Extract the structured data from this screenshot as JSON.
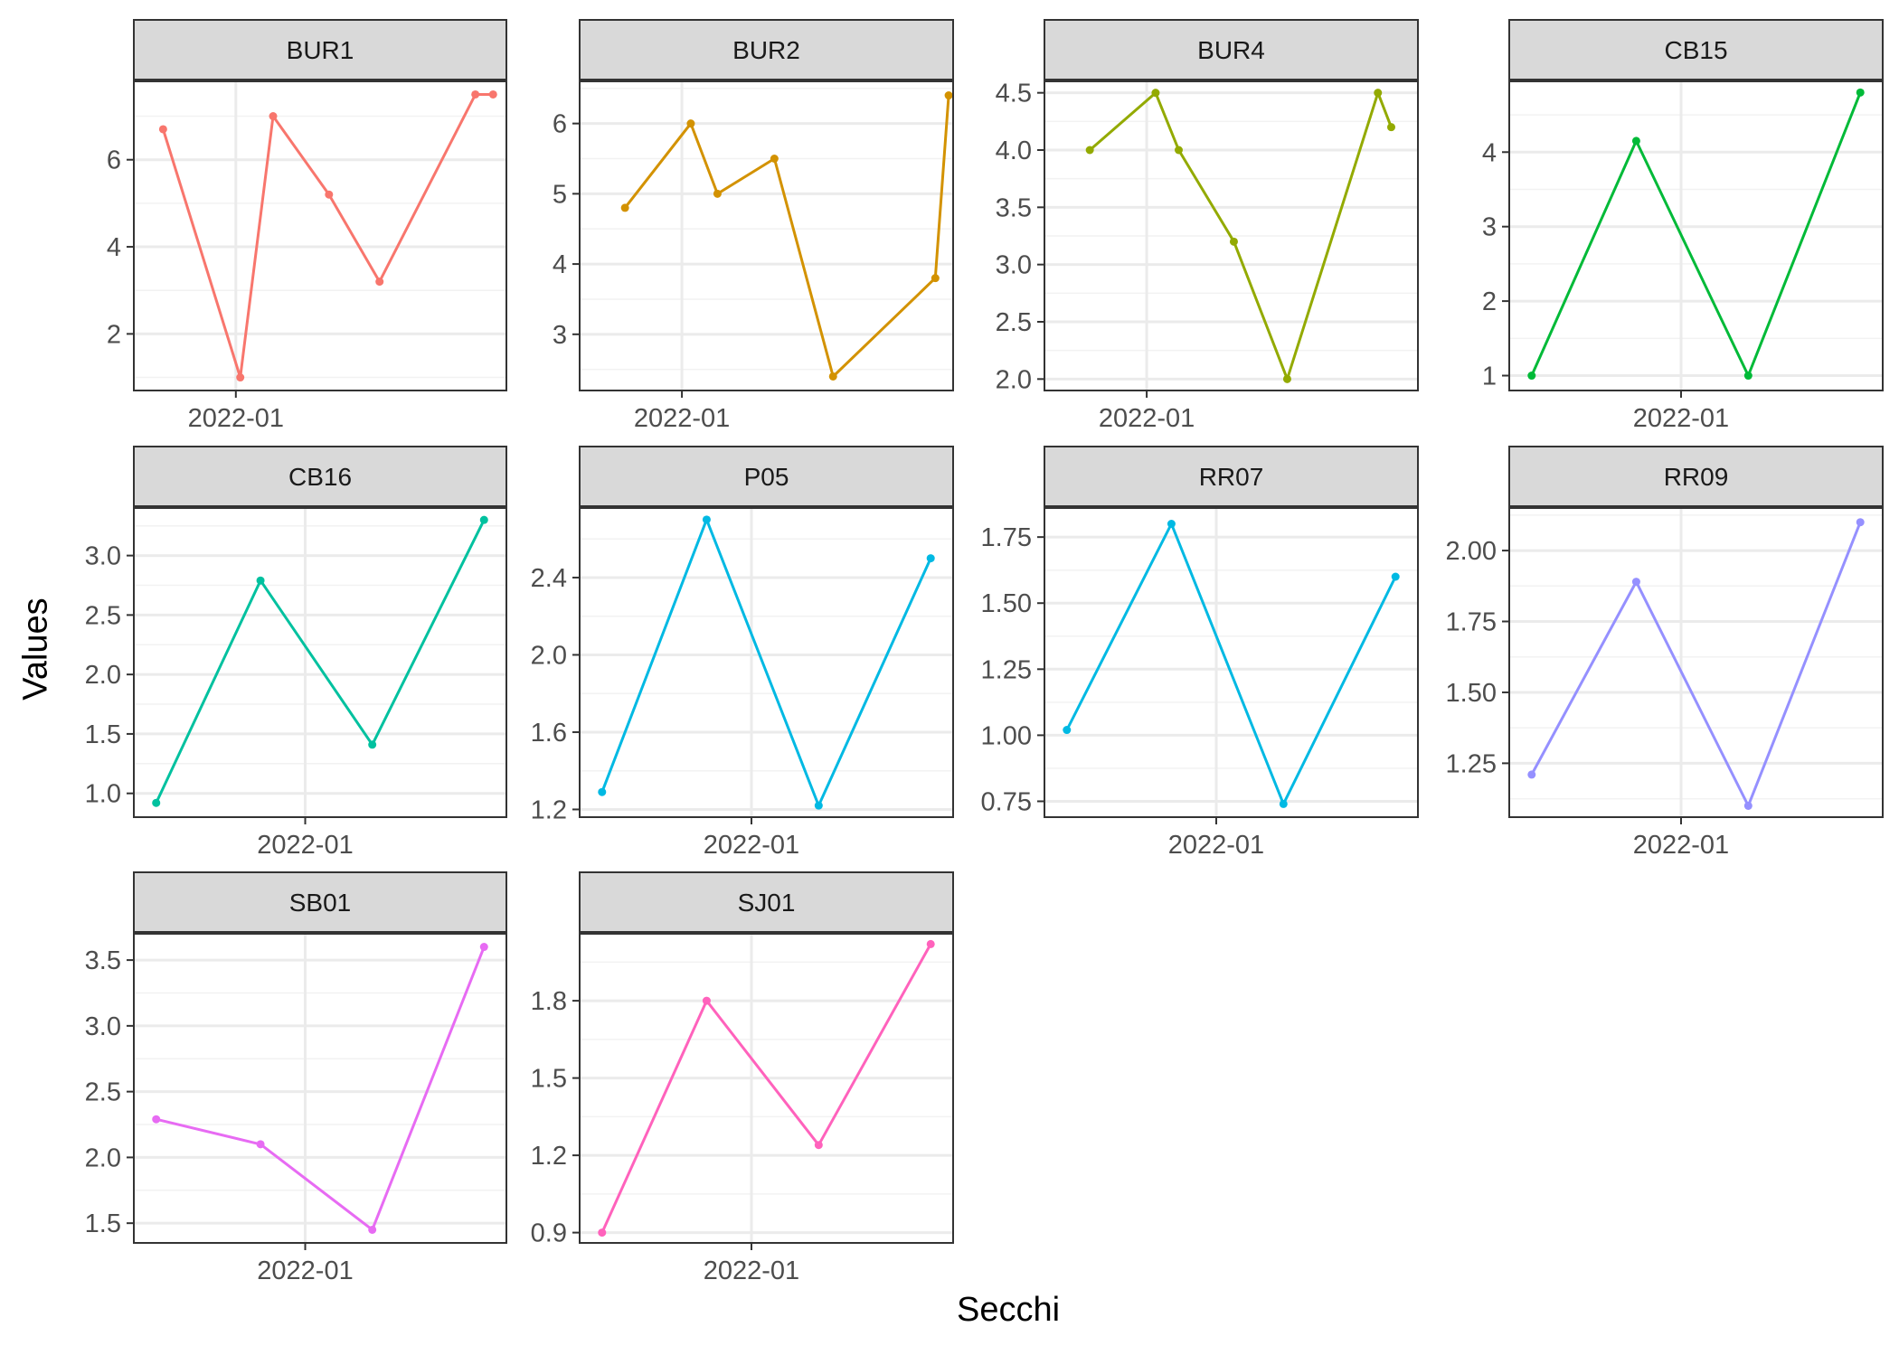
{
  "chart_data": {
    "type": "line",
    "xlabel": "Secchi",
    "ylabel": "Values",
    "x_tick_label": "2022-01",
    "grid": true,
    "legend": "none",
    "panels": [
      {
        "name": "BUR1",
        "color": "#F8766D",
        "ylim": [
          0.7,
          7.8
        ],
        "yticks": [
          "2",
          "4",
          "6"
        ],
        "x": [
          -0.82,
          0.05,
          0.42,
          1.05,
          1.62,
          2.7,
          2.9
        ],
        "values": [
          6.7,
          1.0,
          7.0,
          5.2,
          3.2,
          7.5,
          7.5
        ]
      },
      {
        "name": "BUR2",
        "color": "#D39200",
        "ylim": [
          2.2,
          6.6
        ],
        "yticks": [
          "3",
          "4",
          "5",
          "6"
        ],
        "x": [
          -0.64,
          0.1,
          0.4,
          1.04,
          1.7,
          2.85,
          3.0
        ],
        "values": [
          4.8,
          6.0,
          5.0,
          5.5,
          2.4,
          3.8,
          6.4
        ]
      },
      {
        "name": "BUR4",
        "color": "#93AA00",
        "ylim": [
          1.9,
          4.6
        ],
        "yticks": [
          "2.0",
          "2.5",
          "3.0",
          "3.5",
          "4.0",
          "4.5"
        ],
        "x": [
          -0.64,
          0.1,
          0.36,
          0.98,
          1.58,
          2.6,
          2.75
        ],
        "values": [
          4.0,
          4.5,
          4.0,
          3.2,
          2.0,
          4.5,
          4.2
        ]
      },
      {
        "name": "CB15",
        "color": "#00BA38",
        "ylim": [
          0.8,
          4.95
        ],
        "yticks": [
          "1",
          "2",
          "3",
          "4"
        ],
        "x": [
          -1.0,
          -0.3,
          0.45,
          1.2
        ],
        "values": [
          1.0,
          4.15,
          1.0,
          4.8
        ]
      },
      {
        "name": "CB16",
        "color": "#00C19F",
        "ylim": [
          0.8,
          3.4
        ],
        "yticks": [
          "1.0",
          "1.5",
          "2.0",
          "2.5",
          "3.0"
        ],
        "x": [
          -1.0,
          -0.3,
          0.45,
          1.2
        ],
        "values": [
          0.92,
          2.79,
          1.41,
          3.3
        ]
      },
      {
        "name": "P05",
        "color": "#00B9E3",
        "ylim": [
          1.16,
          2.76
        ],
        "yticks": [
          "1.2",
          "1.6",
          "2.0",
          "2.4"
        ],
        "x": [
          -1.0,
          -0.3,
          0.45,
          1.2
        ],
        "values": [
          1.29,
          2.7,
          1.22,
          2.5
        ]
      },
      {
        "name": "RR07",
        "color": "#00B9E3",
        "ylim": [
          0.69,
          1.86
        ],
        "yticks": [
          "0.75",
          "1.00",
          "1.25",
          "1.50",
          "1.75"
        ],
        "x": [
          -1.0,
          -0.3,
          0.45,
          1.2
        ],
        "values": [
          1.02,
          1.8,
          0.74,
          1.6
        ]
      },
      {
        "name": "RR09",
        "color": "#9590FF",
        "ylim": [
          1.06,
          2.15
        ],
        "yticks": [
          "1.25",
          "1.50",
          "1.75",
          "2.00"
        ],
        "x": [
          -1.0,
          -0.3,
          0.45,
          1.2
        ],
        "values": [
          1.21,
          1.89,
          1.1,
          2.1
        ]
      },
      {
        "name": "SB01",
        "color": "#E76BF3",
        "ylim": [
          1.35,
          3.7
        ],
        "yticks": [
          "1.5",
          "2.0",
          "2.5",
          "3.0",
          "3.5"
        ],
        "x": [
          -1.0,
          -0.3,
          0.45,
          1.2
        ],
        "values": [
          2.29,
          2.1,
          1.45,
          3.6
        ]
      },
      {
        "name": "SJ01",
        "color": "#FF62BC",
        "ylim": [
          0.86,
          2.06
        ],
        "yticks": [
          "0.9",
          "1.2",
          "1.5",
          "1.8"
        ],
        "x": [
          -1.0,
          -0.3,
          0.45,
          1.2
        ],
        "values": [
          0.9,
          1.8,
          1.24,
          2.02
        ]
      }
    ]
  }
}
